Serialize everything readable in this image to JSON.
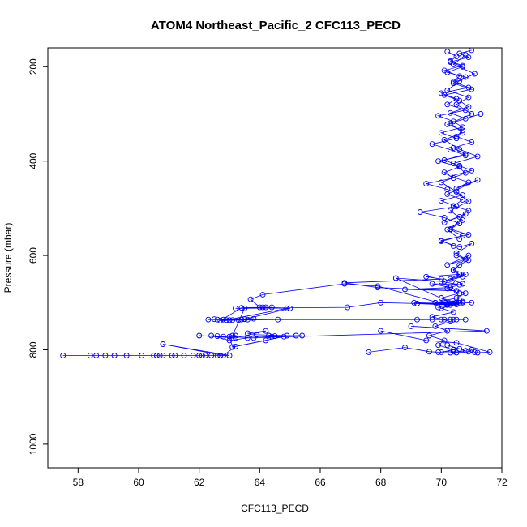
{
  "chart_data": {
    "type": "scatter",
    "title": "ATOM4 Northeast_Pacific_2 CFC113_PECD",
    "xlabel": "CFC113_PECD",
    "ylabel": "Pressure (mbar)",
    "xlim": [
      57.0,
      72.0
    ],
    "ylim": [
      1050,
      160
    ],
    "y_reversed": true,
    "grid": false,
    "x_ticks": [
      58,
      60,
      62,
      64,
      66,
      68,
      70,
      72
    ],
    "y_ticks": [
      200,
      400,
      600,
      800,
      1000
    ],
    "marker": "open-circle",
    "color": "#0000ff",
    "points_connected": true,
    "series": [
      {
        "x": [
          71.0,
          70.6,
          70.9,
          70.3,
          70.7,
          70.2,
          70.8,
          70.4,
          71.0,
          70.1,
          70.6,
          70.9,
          70.3,
          70.8,
          71.3,
          70.2,
          70.7,
          70.5,
          71.0,
          70.4,
          70.8,
          70.1,
          70.6,
          71.0,
          70.3,
          70.9,
          70.5,
          71.2,
          70.2,
          70.7,
          70.4,
          70.9,
          70.6,
          70.1,
          70.8,
          70.3,
          70.7,
          70.0,
          70.6,
          71.0,
          70.5,
          70.8,
          70.2,
          70.9,
          70.4,
          70.7,
          70.1,
          70.6,
          70.3,
          70.8,
          70.5,
          69.8,
          70.6,
          70.2,
          70.7,
          70.0,
          70.5,
          69.2,
          70.3,
          70.7,
          69.8,
          70.4,
          68.5,
          70.0,
          70.6,
          69.7,
          70.3,
          68.8,
          70.5,
          67.9,
          66.8,
          70.0,
          69.5,
          70.6
        ],
        "y": [
          165,
          172,
          180,
          190,
          200,
          212,
          222,
          235,
          248,
          260,
          272,
          285,
          298,
          310,
          300,
          322,
          335,
          348,
          360,
          372,
          385,
          398,
          410,
          420,
          432,
          445,
          458,
          440,
          470,
          482,
          495,
          505,
          518,
          530,
          512,
          545,
          558,
          570,
          582,
          575,
          595,
          608,
          620,
          600,
          632,
          645,
          655,
          640,
          668,
          680,
          690,
          700,
          695,
          705,
          700,
          712,
          700,
          702,
          705,
          698,
          700,
          702,
          648,
          655,
          662,
          660,
          668,
          672,
          675,
          668,
          658,
          650,
          645,
          640
        ]
      },
      {
        "x": [
          70.2,
          70.5,
          70.3,
          70.7,
          70.1,
          70.6,
          70.4,
          70.9,
          70.0,
          70.5,
          70.2,
          70.8,
          69.9,
          70.4,
          70.7,
          70.0,
          70.5,
          69.7,
          70.3,
          70.8,
          69.9,
          70.6,
          70.1,
          70.4,
          69.5,
          70.2,
          70.7,
          70.0,
          70.5,
          69.3,
          70.1,
          70.6,
          70.3,
          70.9,
          70.0,
          70.4
        ],
        "y": [
          168,
          178,
          188,
          198,
          208,
          220,
          232,
          244,
          256,
          268,
          280,
          292,
          304,
          316,
          328,
          340,
          352,
          364,
          376,
          388,
          400,
          412,
          424,
          436,
          448,
          460,
          472,
          484,
          496,
          508,
          520,
          532,
          544,
          556,
          568,
          580
        ]
      },
      {
        "x": [
          70.8,
          70.4,
          71.1,
          70.6,
          70.2,
          70.9,
          70.5,
          71.0,
          70.3,
          70.7,
          70.1,
          70.6,
          71.2,
          70.4,
          70.8,
          70.0,
          70.5,
          70.9,
          70.3,
          70.7,
          70.2,
          70.6
        ],
        "y": [
          175,
          195,
          215,
          230,
          250,
          265,
          280,
          300,
          320,
          340,
          355,
          375,
          390,
          405,
          425,
          445,
          465,
          485,
          505,
          525,
          545,
          565
        ]
      },
      {
        "x": [
          70.5,
          70.9,
          70.6,
          70.4,
          70.8,
          70.3,
          70.7,
          70.2,
          70.6,
          70.0,
          70.5,
          69.9,
          70.4,
          69.7,
          70.3,
          69.8,
          70.2,
          69.6,
          70.1,
          69.9,
          70.4,
          70.0,
          70.6,
          70.2,
          70.8,
          70.3
        ],
        "y": [
          600,
          610,
          620,
          630,
          640,
          650,
          660,
          670,
          680,
          690,
          700,
          710,
          720,
          730,
          740,
          750,
          760,
          770,
          780,
          790,
          800,
          805,
          798,
          790,
          802,
          806
        ]
      },
      {
        "x": [
          71.0,
          70.2,
          69.1,
          70.5,
          68.0,
          66.9,
          63.2,
          64.2,
          65.0,
          63.5,
          62.3,
          63.8,
          62.8,
          64.6,
          63.1,
          62.5,
          63.6,
          62.9,
          64.9,
          64.1,
          63.4,
          62.7,
          63.3,
          62.6,
          63.5,
          63.0,
          63.4,
          70.8,
          70.3,
          69.2,
          70.0,
          69.7,
          70.4,
          70.1,
          70.5
        ],
        "y": [
          700,
          702,
          700,
          704,
          700,
          710,
          712,
          710,
          712,
          735,
          736,
          734,
          736,
          736,
          737,
          735,
          736,
          737,
          712,
          710,
          711,
          738,
          737,
          736,
          735,
          737,
          736,
          736,
          736,
          736,
          736,
          736,
          736,
          736,
          736
        ]
      },
      {
        "x": [
          70.6,
          70.2,
          67.9,
          66.8,
          64.1,
          63.7,
          64.0,
          64.4,
          63.5,
          63.1,
          62.8,
          62.0,
          63.2,
          64.2,
          63.6,
          63.9,
          64.9,
          65.4,
          64.4,
          62.6,
          63.2,
          63.0,
          63.1,
          64.8,
          64.5,
          64.3,
          65.2,
          63.8,
          62.4,
          63.0,
          63.6,
          71.5,
          69.0
        ],
        "y": [
          700,
          705,
          665,
          660,
          683,
          693,
          710,
          710,
          712,
          770,
          772,
          770,
          775,
          760,
          765,
          768,
          770,
          770,
          772,
          771,
          770,
          772,
          794,
          772,
          771,
          770,
          770,
          775,
          770,
          780,
          775,
          760,
          750
        ]
      },
      {
        "x": [
          57.5,
          58.4,
          58.6,
          58.9,
          59.2,
          59.6,
          60.1,
          60.5,
          60.6,
          60.7,
          60.8,
          61.1,
          61.2,
          61.5,
          61.8,
          62.0,
          62.1,
          62.2,
          62.4,
          62.6,
          62.7,
          63.0,
          60.8,
          62.8,
          63.2,
          64.2
        ],
        "y": [
          812,
          812,
          812,
          812,
          812,
          812,
          812,
          812,
          812,
          812,
          812,
          812,
          812,
          812,
          812,
          812,
          812,
          812,
          812,
          812,
          812,
          812,
          788,
          812,
          793,
          780
        ]
      },
      {
        "x": [
          67.6,
          68.8,
          69.6,
          69.9,
          70.4,
          70.5,
          70.9,
          71.0,
          71.1,
          71.2,
          71.6,
          70.5,
          69.5,
          68.0
        ],
        "y": [
          805,
          795,
          804,
          805,
          804,
          806,
          804,
          800,
          805,
          806,
          805,
          785,
          780,
          760
        ]
      }
    ]
  }
}
